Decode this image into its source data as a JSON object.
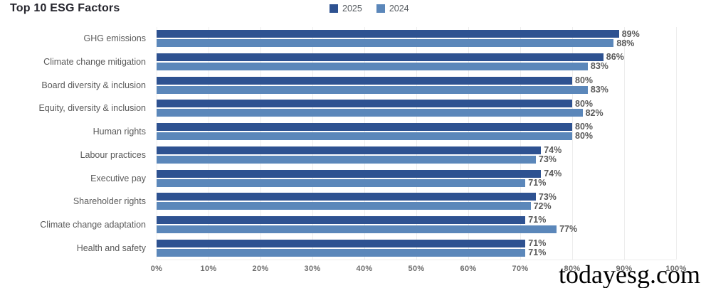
{
  "title": "Top 10 ESG Factors",
  "watermark": "todayesg.com",
  "legend": [
    {
      "label": "2025",
      "color": "#2e5291"
    },
    {
      "label": "2024",
      "color": "#5b87ba"
    }
  ],
  "chart_data": {
    "type": "bar",
    "orientation": "horizontal",
    "title": "Top 10 ESG Factors",
    "categories": [
      "GHG emissions",
      "Climate change mitigation",
      "Board diversity & inclusion",
      "Equity, diversity & inclusion",
      "Human rights",
      "Labour practices",
      "Executive pay",
      "Shareholder rights",
      "Climate change adaptation",
      "Health and safety"
    ],
    "series": [
      {
        "name": "2025",
        "color": "#2e5291",
        "values": [
          89,
          86,
          80,
          80,
          80,
          74,
          74,
          73,
          71,
          71
        ]
      },
      {
        "name": "2024",
        "color": "#5b87ba",
        "values": [
          88,
          83,
          83,
          82,
          80,
          73,
          71,
          72,
          77,
          71
        ]
      }
    ],
    "value_suffix": "%",
    "xlim": [
      0,
      100
    ],
    "x_ticks": [
      "0%",
      "10%",
      "20%",
      "30%",
      "40%",
      "50%",
      "60%",
      "70%",
      "80%",
      "90%",
      "100%"
    ],
    "grid": true,
    "legend_position": "top-center"
  }
}
